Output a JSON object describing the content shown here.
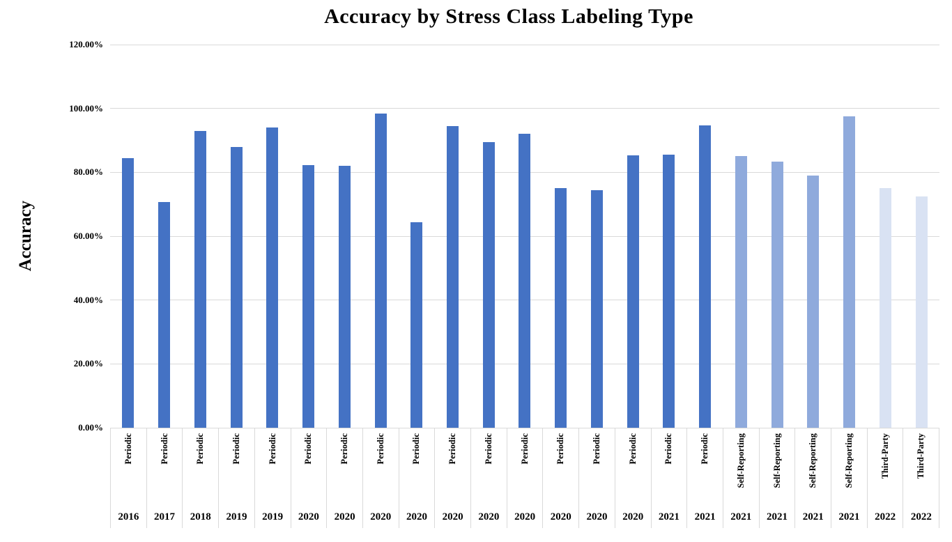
{
  "title": "Accuracy by Stress Class Labeling Type",
  "colors": {
    "gridline": "#d9d9d9",
    "text": "#000000",
    "groups": {
      "Periodic": "#4472c4",
      "Self-Reporting": "#8faadc",
      "Third-Party": "#d9e2f3"
    }
  },
  "chart_data": {
    "type": "bar",
    "title": "Accuracy by Stress Class Labeling Type",
    "xlabel": "",
    "ylabel": "Accuracy",
    "ylim": [
      0,
      120
    ],
    "ytick_labels": [
      "0.00%",
      "20.00%",
      "40.00%",
      "60.00%",
      "80.00%",
      "100.00%",
      "120.00%"
    ],
    "grid": true,
    "legend_position": "none",
    "bar_color_by_group": true,
    "bars": [
      {
        "group": "Periodic",
        "year": "2016",
        "value": 84.4
      },
      {
        "group": "Periodic",
        "year": "2017",
        "value": 70.7
      },
      {
        "group": "Periodic",
        "year": "2018",
        "value": 92.9
      },
      {
        "group": "Periodic",
        "year": "2019",
        "value": 88.0
      },
      {
        "group": "Periodic",
        "year": "2019",
        "value": 94.0
      },
      {
        "group": "Periodic",
        "year": "2020",
        "value": 82.2
      },
      {
        "group": "Periodic",
        "year": "2020",
        "value": 82.0
      },
      {
        "group": "Periodic",
        "year": "2020",
        "value": 98.5
      },
      {
        "group": "Periodic",
        "year": "2020",
        "value": 64.4
      },
      {
        "group": "Periodic",
        "year": "2020",
        "value": 94.4
      },
      {
        "group": "Periodic",
        "year": "2020",
        "value": 89.4
      },
      {
        "group": "Periodic",
        "year": "2020",
        "value": 92.0
      },
      {
        "group": "Periodic",
        "year": "2020",
        "value": 75.0
      },
      {
        "group": "Periodic",
        "year": "2020",
        "value": 74.4
      },
      {
        "group": "Periodic",
        "year": "2020",
        "value": 85.3
      },
      {
        "group": "Periodic",
        "year": "2021",
        "value": 85.6
      },
      {
        "group": "Periodic",
        "year": "2021",
        "value": 94.6
      },
      {
        "group": "Self-Reporting",
        "year": "2021",
        "value": 85.0
      },
      {
        "group": "Self-Reporting",
        "year": "2021",
        "value": 83.3
      },
      {
        "group": "Self-Reporting",
        "year": "2021",
        "value": 79.0
      },
      {
        "group": "Self-Reporting",
        "year": "2021",
        "value": 97.5
      },
      {
        "group": "Third-Party",
        "year": "2022",
        "value": 75.0
      },
      {
        "group": "Third-Party",
        "year": "2022",
        "value": 72.4
      }
    ]
  }
}
